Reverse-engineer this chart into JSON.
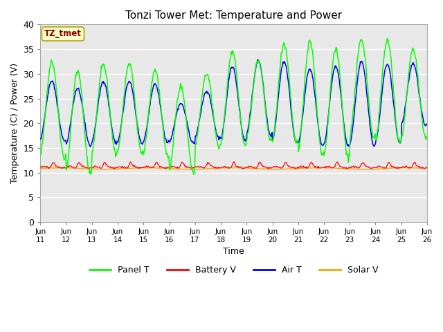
{
  "title": "Tonzi Tower Met: Temperature and Power",
  "xlabel": "Time",
  "ylabel": "Temperature (C) / Power (V)",
  "ylim": [
    0,
    40
  ],
  "yticks": [
    0,
    5,
    10,
    15,
    20,
    25,
    30,
    35,
    40
  ],
  "xtick_labels": [
    "Jun\n11",
    "Jun\n12",
    "Jun\n13",
    "Jun\n14",
    "Jun\n15",
    "Jun\n16",
    "Jun\n17",
    "Jun\n18",
    "Jun\n19",
    "Jun\n20",
    "Jun\n21",
    "Jun\n22",
    "Jun\n23",
    "Jun\n24",
    "Jun\n25",
    "Jun\n26"
  ],
  "panel_t_color": "#00FF00",
  "battery_v_color": "#FF0000",
  "air_t_color": "#0000FF",
  "solar_v_color": "#FFA500",
  "bg_color": "#E8E8E8",
  "grid_color": "#FFFFFF",
  "annotation_text": "TZ_tmet",
  "annotation_bg": "#FFFFCC",
  "annotation_border": "#AAAA00",
  "annotation_text_color": "#880000",
  "legend_labels": [
    "Panel T",
    "Battery V",
    "Air T",
    "Solar V"
  ],
  "title_fontsize": 11,
  "label_fontsize": 9,
  "n_days": 15,
  "panel_peaks": [
    32.5,
    30.5,
    31.8,
    32.0,
    30.8,
    27.5,
    30.0,
    34.5,
    32.7,
    35.8,
    36.7,
    35.0,
    37.0,
    36.8,
    35.0
  ],
  "panel_mins": [
    13.0,
    10.0,
    13.8,
    14.0,
    13.5,
    10.2,
    15.0,
    15.5,
    16.5,
    16.0,
    13.5,
    13.0,
    17.0,
    16.0,
    17.0
  ],
  "air_peaks": [
    28.5,
    27.0,
    28.5,
    28.5,
    28.0,
    24.0,
    26.5,
    31.5,
    32.7,
    32.5,
    31.0,
    31.5,
    32.5,
    32.0,
    32.0
  ],
  "air_mins": [
    16.5,
    15.5,
    16.0,
    16.0,
    16.0,
    16.0,
    17.0,
    16.5,
    17.5,
    16.0,
    15.5,
    15.5,
    15.5,
    16.0,
    19.5
  ]
}
